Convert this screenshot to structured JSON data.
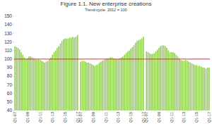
{
  "chart_data": {
    "type": "bar",
    "title": "Figure 1.1. New enterprise creations",
    "subtitle": "Trend-cycle, 2012 = 100",
    "categories": [
      "Q1-07",
      null,
      null,
      null,
      null,
      null,
      null,
      null,
      "Q1-09",
      null,
      null,
      null,
      null,
      null,
      null,
      null,
      "Q1-11",
      null,
      null,
      null,
      null,
      null,
      null,
      null,
      "Q1-13",
      null,
      null,
      null,
      null,
      null,
      null,
      null,
      "Q1-15",
      null,
      null,
      null,
      null,
      null,
      null,
      null,
      "Q1-17",
      null,
      "Q1-07",
      null,
      null,
      null,
      null,
      null,
      null,
      null,
      "Q1-09",
      null,
      null,
      null,
      null,
      null,
      null,
      null,
      "Q1-11",
      null,
      null,
      null,
      null,
      null,
      null,
      null,
      "Q1-13",
      null,
      null,
      null,
      null,
      null,
      null,
      null,
      "Q1-15",
      null,
      null,
      null,
      null,
      null,
      null,
      null,
      "Q1-17",
      null,
      "Q1-07",
      null,
      null,
      null,
      null,
      null,
      null,
      null,
      "Q1-09",
      null,
      null,
      null,
      null,
      null,
      null,
      null,
      "Q1-11",
      null,
      null,
      null,
      null,
      null,
      null,
      null,
      "Q1-13",
      null,
      null,
      null,
      null,
      null,
      null,
      null,
      "Q1-15",
      null,
      null,
      null,
      null,
      null,
      null,
      null,
      "Q1-17"
    ],
    "values": [
      115,
      114,
      113,
      111,
      108,
      105,
      102,
      100,
      101,
      103,
      103,
      102,
      101,
      100,
      99,
      100,
      99,
      98,
      97,
      96,
      97,
      98,
      100,
      102,
      105,
      108,
      110,
      113,
      115,
      118,
      121,
      123,
      124,
      124,
      124,
      125,
      125,
      126,
      125,
      126,
      128,
      null,
      97,
      98,
      98,
      97,
      96,
      96,
      95,
      94,
      93,
      92,
      93,
      94,
      96,
      97,
      98,
      99,
      100,
      101,
      101,
      102,
      102,
      101,
      100,
      100,
      100,
      101,
      102,
      103,
      105,
      107,
      109,
      110,
      112,
      114,
      116,
      119,
      121,
      122,
      123,
      124,
      126,
      null,
      109,
      108,
      107,
      106,
      106,
      107,
      109,
      111,
      113,
      115,
      116,
      116,
      115,
      113,
      110,
      108,
      108,
      108,
      107,
      105,
      103,
      101,
      99,
      98,
      98,
      99,
      98,
      97,
      96,
      95,
      94,
      93,
      93,
      92,
      92,
      91,
      90,
      90,
      89,
      90,
      90
    ],
    "color": "#92d050",
    "hline": 100,
    "hline_color": "#e03030",
    "ylim": [
      40,
      150
    ],
    "yticks": [
      40,
      50,
      60,
      70,
      80,
      90,
      100,
      110,
      120,
      130,
      140,
      150
    ],
    "grid": false
  }
}
